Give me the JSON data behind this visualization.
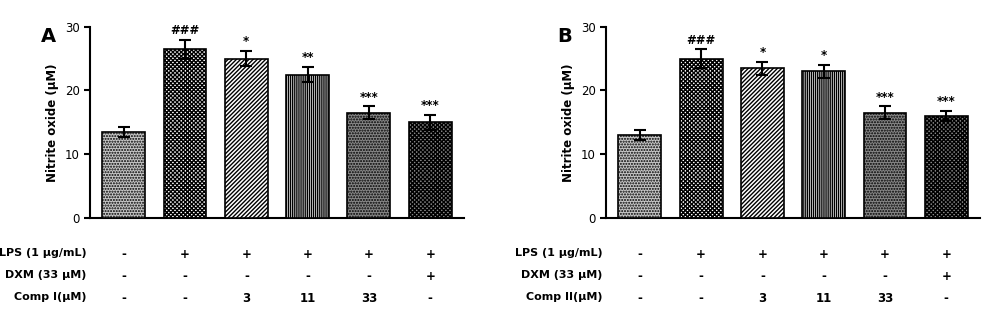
{
  "panel_A": {
    "label": "A",
    "values": [
      13.5,
      26.5,
      25.0,
      22.5,
      16.5,
      15.0
    ],
    "errors": [
      0.8,
      1.5,
      1.2,
      1.2,
      1.0,
      1.2
    ],
    "significance": [
      "",
      "###",
      "*",
      "**",
      "***",
      "***"
    ],
    "ylabel": "Nitrite oxide (μM)",
    "ylim": [
      0,
      30
    ],
    "yticks": [
      0,
      10,
      20,
      30
    ],
    "table_rows": [
      [
        "LPS (1 μg/mL)",
        "-",
        "+",
        "+",
        "+",
        "+",
        "+"
      ],
      [
        "DXM (33 μM)",
        "-",
        "-",
        "-",
        "-",
        "-",
        "+"
      ],
      [
        "Comp I(μM)",
        "-",
        "-",
        "3",
        "11",
        "33",
        "-"
      ]
    ]
  },
  "panel_B": {
    "label": "B",
    "values": [
      13.0,
      25.0,
      23.5,
      23.0,
      16.5,
      16.0
    ],
    "errors": [
      0.8,
      1.5,
      1.0,
      1.0,
      1.0,
      0.8
    ],
    "significance": [
      "",
      "###",
      "*",
      "*",
      "***",
      "***"
    ],
    "ylabel": "Nitrite oxide (μM)",
    "ylim": [
      0,
      30
    ],
    "yticks": [
      0,
      10,
      20,
      30
    ],
    "table_rows": [
      [
        "LPS (1 μg/mL)",
        "-",
        "+",
        "+",
        "+",
        "+",
        "+"
      ],
      [
        "DXM (33 μM)",
        "-",
        "-",
        "-",
        "-",
        "-",
        "+"
      ],
      [
        "Comp II(μM)",
        "-",
        "-",
        "3",
        "11",
        "33",
        "-"
      ]
    ]
  },
  "edgecolor": "black",
  "bar_width": 0.7,
  "fig_bg": "white",
  "hatch_patterns": [
    "....",
    "xxxx",
    "////",
    "||||",
    ".....",
    "xxxxx"
  ],
  "face_colors": [
    "#d0d0d0",
    "white",
    "white",
    "white",
    "#888888",
    "#888888"
  ],
  "hatch_colors": [
    "black",
    "black",
    "black",
    "black",
    "black",
    "black"
  ]
}
